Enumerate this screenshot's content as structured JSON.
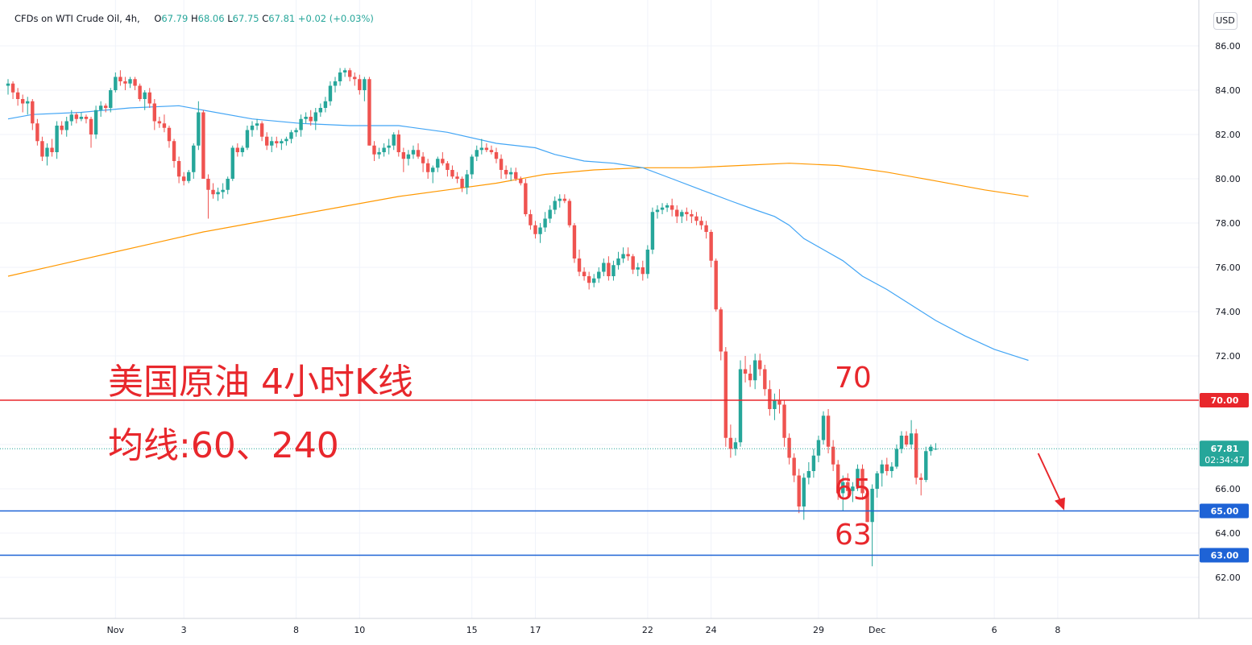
{
  "header": {
    "symbol": "CFDs on WTI Crude Oil, 4h,",
    "open_label": "O",
    "open": "67.79",
    "high_label": "H",
    "high": "68.06",
    "low_label": "L",
    "low": "67.75",
    "close_label": "C",
    "close": "67.81",
    "change": "+0.02 (+0.03%)"
  },
  "currency_button": "USD",
  "annotations": {
    "title": "美国原油 4小时K线",
    "subtitle": "均线:60、240",
    "level_70": "70",
    "level_65": "65",
    "level_63": "63"
  },
  "price_badges": {
    "last_price": "67.81",
    "countdown": "02:34:47"
  },
  "colors": {
    "up": "#26a69a",
    "down": "#ef5350",
    "ma60": "#42a5f5",
    "ma240": "#ff9800",
    "resistance": "#e8272c",
    "support": "#1e63d6",
    "annotation": "#e8272c"
  },
  "chart_data": {
    "type": "candlestick",
    "interval": "4h",
    "ylim": [
      61.0,
      87.0
    ],
    "y_ticks": [
      62,
      64,
      66,
      68,
      70,
      72,
      74,
      76,
      78,
      80,
      82,
      84,
      86
    ],
    "y_tick_labels": [
      "62.00",
      "64.00",
      "66.00",
      "68.00",
      "70.00",
      "72.00",
      "74.00",
      "76.00",
      "78.00",
      "80.00",
      "82.00",
      "84.00",
      "86.00"
    ],
    "x_ticks": [
      {
        "label": "Nov",
        "bar": 22
      },
      {
        "label": "3",
        "bar": 36
      },
      {
        "label": "8",
        "bar": 59
      },
      {
        "label": "10",
        "bar": 72
      },
      {
        "label": "15",
        "bar": 95
      },
      {
        "label": "17",
        "bar": 108
      },
      {
        "label": "22",
        "bar": 131
      },
      {
        "label": "24",
        "bar": 144
      },
      {
        "label": "29",
        "bar": 166
      },
      {
        "label": "Dec",
        "bar": 178
      },
      {
        "label": "6",
        "bar": 202
      },
      {
        "label": "8",
        "bar": 215
      }
    ],
    "horizontal_lines": [
      {
        "name": "resistance",
        "value": 70.0,
        "label": "70.00"
      },
      {
        "name": "support",
        "value": 65.0,
        "label": "65.00"
      },
      {
        "name": "support",
        "value": 63.0,
        "label": "63.00"
      }
    ],
    "current_price": 67.81,
    "ohlc": [
      [
        84.2,
        84.5,
        83.8,
        84.3
      ],
      [
        84.3,
        84.4,
        83.6,
        83.9
      ],
      [
        83.9,
        84.1,
        83.3,
        83.6
      ],
      [
        83.6,
        83.8,
        83.0,
        83.4
      ],
      [
        83.4,
        83.7,
        82.9,
        83.5
      ],
      [
        83.5,
        83.6,
        82.2,
        82.5
      ],
      [
        82.5,
        82.7,
        81.5,
        81.7
      ],
      [
        81.7,
        81.9,
        80.8,
        81.0
      ],
      [
        81.0,
        81.6,
        80.6,
        81.4
      ],
      [
        81.4,
        81.8,
        81.0,
        81.2
      ],
      [
        81.2,
        82.6,
        80.9,
        82.4
      ],
      [
        82.4,
        82.6,
        82.0,
        82.2
      ],
      [
        82.2,
        82.8,
        81.9,
        82.6
      ],
      [
        82.6,
        83.1,
        82.4,
        82.9
      ],
      [
        82.9,
        83.0,
        82.5,
        82.7
      ],
      [
        82.7,
        83.0,
        82.6,
        82.8
      ],
      [
        82.8,
        82.9,
        82.5,
        82.7
      ],
      [
        82.7,
        82.8,
        81.4,
        82.0
      ],
      [
        82.0,
        83.3,
        81.8,
        83.1
      ],
      [
        83.1,
        83.5,
        82.8,
        83.3
      ],
      [
        83.3,
        83.4,
        83.0,
        83.2
      ],
      [
        83.2,
        84.1,
        83.0,
        84.0
      ],
      [
        84.0,
        84.8,
        83.9,
        84.6
      ],
      [
        84.6,
        84.9,
        84.2,
        84.4
      ],
      [
        84.4,
        84.6,
        84.0,
        84.3
      ],
      [
        84.3,
        84.6,
        84.1,
        84.5
      ],
      [
        84.5,
        84.6,
        84.0,
        84.2
      ],
      [
        84.2,
        84.3,
        83.5,
        83.6
      ],
      [
        83.6,
        84.0,
        83.1,
        83.9
      ],
      [
        83.9,
        84.1,
        83.2,
        83.4
      ],
      [
        83.4,
        83.6,
        82.2,
        82.6
      ],
      [
        82.6,
        82.8,
        82.3,
        82.5
      ],
      [
        82.5,
        82.9,
        82.1,
        82.3
      ],
      [
        82.3,
        82.4,
        81.4,
        81.7
      ],
      [
        81.7,
        81.8,
        80.5,
        80.8
      ],
      [
        80.8,
        81.0,
        79.8,
        80.1
      ],
      [
        80.1,
        80.3,
        79.7,
        79.9
      ],
      [
        79.9,
        80.4,
        79.8,
        80.3
      ],
      [
        80.3,
        81.6,
        80.0,
        81.5
      ],
      [
        81.5,
        83.5,
        81.3,
        83.0
      ],
      [
        83.0,
        83.1,
        80.2,
        80.0
      ],
      [
        80.0,
        80.2,
        78.2,
        79.5
      ],
      [
        79.5,
        79.8,
        79.1,
        79.3
      ],
      [
        79.3,
        79.6,
        79.0,
        79.4
      ],
      [
        79.4,
        79.8,
        79.1,
        79.5
      ],
      [
        79.5,
        80.1,
        79.3,
        80.0
      ],
      [
        80.0,
        81.5,
        79.9,
        81.4
      ],
      [
        81.4,
        81.6,
        81.0,
        81.2
      ],
      [
        81.2,
        81.5,
        81.0,
        81.4
      ],
      [
        81.4,
        82.4,
        81.3,
        82.2
      ],
      [
        82.2,
        82.6,
        81.9,
        82.4
      ],
      [
        82.4,
        82.7,
        82.2,
        82.5
      ],
      [
        82.5,
        82.6,
        81.7,
        81.9
      ],
      [
        81.9,
        82.1,
        81.3,
        81.5
      ],
      [
        81.5,
        81.9,
        81.2,
        81.7
      ],
      [
        81.7,
        81.9,
        81.4,
        81.6
      ],
      [
        81.6,
        81.8,
        81.3,
        81.7
      ],
      [
        81.7,
        81.9,
        81.5,
        81.8
      ],
      [
        81.8,
        82.2,
        81.6,
        82.1
      ],
      [
        82.1,
        82.3,
        81.9,
        82.2
      ],
      [
        82.2,
        82.9,
        81.9,
        82.7
      ],
      [
        82.7,
        83.0,
        82.5,
        82.8
      ],
      [
        82.8,
        83.1,
        82.4,
        82.6
      ],
      [
        82.6,
        83.2,
        82.2,
        83.0
      ],
      [
        83.0,
        83.4,
        82.8,
        83.2
      ],
      [
        83.2,
        83.7,
        83.0,
        83.5
      ],
      [
        83.5,
        84.4,
        83.3,
        84.2
      ],
      [
        84.2,
        84.6,
        83.9,
        84.4
      ],
      [
        84.4,
        85.0,
        84.2,
        84.8
      ],
      [
        84.8,
        85.0,
        84.6,
        84.9
      ],
      [
        84.9,
        85.0,
        84.4,
        84.6
      ],
      [
        84.6,
        84.8,
        84.2,
        84.5
      ],
      [
        84.5,
        84.7,
        83.8,
        84.0
      ],
      [
        84.0,
        84.6,
        83.5,
        84.5
      ],
      [
        84.5,
        84.6,
        81.5,
        81.5
      ],
      [
        81.5,
        81.7,
        80.8,
        81.1
      ],
      [
        81.1,
        81.4,
        80.9,
        81.2
      ],
      [
        81.2,
        81.6,
        81.0,
        81.4
      ],
      [
        81.4,
        81.8,
        81.1,
        81.5
      ],
      [
        81.5,
        82.1,
        81.3,
        82.0
      ],
      [
        82.0,
        82.2,
        81.0,
        81.2
      ],
      [
        81.2,
        81.4,
        80.3,
        80.9
      ],
      [
        80.9,
        81.3,
        80.6,
        81.1
      ],
      [
        81.1,
        81.5,
        80.9,
        81.3
      ],
      [
        81.3,
        81.6,
        80.9,
        81.0
      ],
      [
        81.0,
        81.2,
        80.3,
        80.7
      ],
      [
        80.7,
        80.9,
        80.0,
        80.3
      ],
      [
        80.3,
        80.6,
        79.8,
        80.5
      ],
      [
        80.5,
        81.0,
        80.3,
        80.9
      ],
      [
        80.9,
        81.2,
        80.6,
        80.7
      ],
      [
        80.7,
        80.8,
        80.1,
        80.4
      ],
      [
        80.4,
        80.6,
        80.0,
        80.1
      ],
      [
        80.1,
        80.3,
        79.8,
        80.0
      ],
      [
        80.0,
        80.1,
        79.4,
        79.6
      ],
      [
        79.6,
        80.4,
        79.3,
        80.2
      ],
      [
        80.2,
        81.1,
        80.0,
        81.0
      ],
      [
        81.0,
        81.5,
        80.8,
        81.3
      ],
      [
        81.3,
        81.8,
        81.1,
        81.4
      ],
      [
        81.4,
        81.6,
        81.2,
        81.3
      ],
      [
        81.3,
        81.5,
        81.1,
        81.2
      ],
      [
        81.2,
        81.4,
        80.7,
        80.9
      ],
      [
        80.9,
        81.1,
        80.0,
        80.4
      ],
      [
        80.4,
        80.6,
        80.0,
        80.2
      ],
      [
        80.2,
        80.5,
        79.9,
        80.3
      ],
      [
        80.3,
        80.5,
        79.9,
        80.0
      ],
      [
        80.0,
        80.1,
        79.7,
        79.8
      ],
      [
        79.8,
        80.0,
        78.3,
        78.4
      ],
      [
        78.4,
        78.6,
        77.7,
        77.9
      ],
      [
        77.9,
        78.1,
        77.3,
        77.5
      ],
      [
        77.5,
        78.0,
        77.1,
        77.8
      ],
      [
        77.8,
        78.5,
        77.6,
        78.2
      ],
      [
        78.2,
        78.8,
        78.0,
        78.6
      ],
      [
        78.6,
        79.2,
        78.4,
        79.0
      ],
      [
        79.0,
        79.3,
        78.7,
        79.1
      ],
      [
        79.1,
        79.3,
        78.9,
        79.0
      ],
      [
        79.0,
        79.1,
        77.8,
        77.9
      ],
      [
        77.9,
        78.0,
        76.2,
        76.4
      ],
      [
        76.4,
        76.8,
        75.6,
        75.8
      ],
      [
        75.8,
        76.0,
        75.4,
        75.6
      ],
      [
        75.6,
        75.8,
        75.0,
        75.3
      ],
      [
        75.3,
        75.7,
        75.1,
        75.5
      ],
      [
        75.5,
        76.0,
        75.3,
        75.8
      ],
      [
        75.8,
        76.4,
        75.6,
        76.2
      ],
      [
        76.2,
        76.5,
        75.4,
        75.6
      ],
      [
        75.6,
        76.3,
        75.4,
        76.1
      ],
      [
        76.1,
        76.7,
        75.9,
        76.4
      ],
      [
        76.4,
        76.9,
        76.2,
        76.6
      ],
      [
        76.6,
        76.9,
        76.3,
        76.5
      ],
      [
        76.5,
        76.6,
        75.7,
        75.9
      ],
      [
        75.9,
        76.2,
        75.6,
        76.0
      ],
      [
        76.0,
        76.3,
        75.4,
        75.7
      ],
      [
        75.7,
        77.0,
        75.5,
        76.8
      ],
      [
        76.8,
        78.7,
        76.6,
        78.5
      ],
      [
        78.5,
        78.8,
        78.2,
        78.6
      ],
      [
        78.6,
        78.9,
        78.4,
        78.7
      ],
      [
        78.7,
        78.9,
        78.5,
        78.8
      ],
      [
        78.8,
        79.1,
        78.3,
        78.6
      ],
      [
        78.6,
        78.8,
        78.0,
        78.3
      ],
      [
        78.3,
        78.6,
        78.0,
        78.5
      ],
      [
        78.5,
        78.7,
        78.1,
        78.4
      ],
      [
        78.4,
        78.6,
        78.0,
        78.3
      ],
      [
        78.3,
        78.5,
        77.9,
        78.1
      ],
      [
        78.1,
        78.3,
        77.7,
        77.9
      ],
      [
        77.9,
        78.1,
        77.3,
        77.6
      ],
      [
        77.6,
        77.7,
        76.0,
        76.3
      ],
      [
        76.3,
        76.4,
        74.0,
        74.1
      ],
      [
        74.1,
        74.2,
        71.8,
        72.2
      ],
      [
        72.2,
        72.4,
        67.9,
        68.3
      ],
      [
        68.3,
        68.9,
        67.4,
        67.8
      ],
      [
        67.8,
        68.3,
        67.5,
        68.1
      ],
      [
        68.1,
        71.8,
        67.9,
        71.4
      ],
      [
        71.4,
        72.0,
        70.8,
        71.2
      ],
      [
        71.2,
        71.6,
        70.6,
        70.9
      ],
      [
        70.9,
        72.1,
        70.5,
        71.8
      ],
      [
        71.8,
        72.1,
        71.1,
        71.4
      ],
      [
        71.4,
        71.6,
        70.2,
        70.5
      ],
      [
        70.5,
        70.9,
        69.3,
        69.6
      ],
      [
        69.6,
        70.3,
        69.1,
        70.0
      ],
      [
        70.0,
        70.5,
        69.4,
        69.8
      ],
      [
        69.8,
        70.0,
        67.9,
        68.3
      ],
      [
        68.3,
        68.5,
        67.1,
        67.4
      ],
      [
        67.4,
        67.6,
        66.3,
        66.6
      ],
      [
        66.6,
        66.9,
        64.9,
        65.2
      ],
      [
        65.2,
        66.7,
        64.6,
        66.5
      ],
      [
        66.5,
        67.2,
        66.2,
        66.8
      ],
      [
        66.8,
        67.8,
        66.5,
        67.5
      ],
      [
        67.5,
        68.4,
        67.2,
        68.2
      ],
      [
        68.2,
        69.5,
        68.0,
        69.3
      ],
      [
        69.3,
        69.6,
        67.6,
        67.9
      ],
      [
        67.9,
        68.2,
        66.8,
        67.1
      ],
      [
        67.1,
        67.3,
        65.5,
        65.8
      ],
      [
        65.8,
        66.6,
        65.0,
        66.3
      ],
      [
        66.3,
        66.7,
        65.7,
        65.9
      ],
      [
        65.9,
        66.3,
        65.4,
        66.1
      ],
      [
        66.1,
        67.1,
        65.9,
        66.9
      ],
      [
        66.9,
        67.1,
        65.5,
        65.8
      ],
      [
        65.8,
        65.9,
        64.5,
        64.5
      ],
      [
        64.5,
        66.2,
        62.5,
        66.0
      ],
      [
        66.0,
        66.8,
        65.6,
        66.7
      ],
      [
        66.7,
        67.3,
        66.1,
        67.1
      ],
      [
        67.1,
        67.4,
        66.6,
        66.8
      ],
      [
        66.8,
        67.2,
        66.5,
        67.0
      ],
      [
        67.0,
        68.0,
        66.9,
        67.8
      ],
      [
        67.8,
        68.6,
        67.6,
        68.4
      ],
      [
        68.4,
        68.6,
        67.9,
        68.0
      ],
      [
        68.0,
        69.1,
        67.8,
        68.5
      ],
      [
        68.5,
        68.7,
        66.2,
        66.5
      ],
      [
        66.5,
        66.7,
        65.7,
        66.4
      ],
      [
        66.4,
        67.9,
        66.3,
        67.7
      ],
      [
        67.7,
        68.0,
        67.5,
        67.9
      ],
      [
        67.79,
        68.06,
        67.75,
        67.81
      ]
    ],
    "ma60": [
      [
        0,
        82.7
      ],
      [
        5,
        82.9
      ],
      [
        15,
        83.0
      ],
      [
        25,
        83.2
      ],
      [
        35,
        83.3
      ],
      [
        40,
        83.1
      ],
      [
        50,
        82.7
      ],
      [
        60,
        82.5
      ],
      [
        70,
        82.4
      ],
      [
        80,
        82.4
      ],
      [
        90,
        82.1
      ],
      [
        100,
        81.6
      ],
      [
        108,
        81.4
      ],
      [
        112,
        81.1
      ],
      [
        118,
        80.8
      ],
      [
        124,
        80.7
      ],
      [
        130,
        80.5
      ],
      [
        136,
        80.0
      ],
      [
        142,
        79.5
      ],
      [
        148,
        79.0
      ],
      [
        153,
        78.6
      ],
      [
        157,
        78.3
      ],
      [
        160,
        77.9
      ],
      [
        163,
        77.3
      ],
      [
        167,
        76.8
      ],
      [
        171,
        76.3
      ],
      [
        175,
        75.6
      ],
      [
        180,
        75.0
      ],
      [
        185,
        74.3
      ],
      [
        190,
        73.6
      ],
      [
        196,
        72.9
      ],
      [
        202,
        72.3
      ],
      [
        209,
        71.8
      ]
    ],
    "ma240": [
      [
        0,
        75.6
      ],
      [
        10,
        76.1
      ],
      [
        20,
        76.6
      ],
      [
        30,
        77.1
      ],
      [
        40,
        77.6
      ],
      [
        50,
        78.0
      ],
      [
        60,
        78.4
      ],
      [
        70,
        78.8
      ],
      [
        80,
        79.2
      ],
      [
        90,
        79.5
      ],
      [
        100,
        79.8
      ],
      [
        110,
        80.2
      ],
      [
        120,
        80.4
      ],
      [
        130,
        80.5
      ],
      [
        140,
        80.5
      ],
      [
        150,
        80.6
      ],
      [
        160,
        80.7
      ],
      [
        170,
        80.6
      ],
      [
        180,
        80.3
      ],
      [
        190,
        79.9
      ],
      [
        200,
        79.5
      ],
      [
        209,
        79.2
      ]
    ],
    "arrow": {
      "from": [
        211,
        67.6
      ],
      "to": [
        216,
        65.1
      ]
    }
  }
}
